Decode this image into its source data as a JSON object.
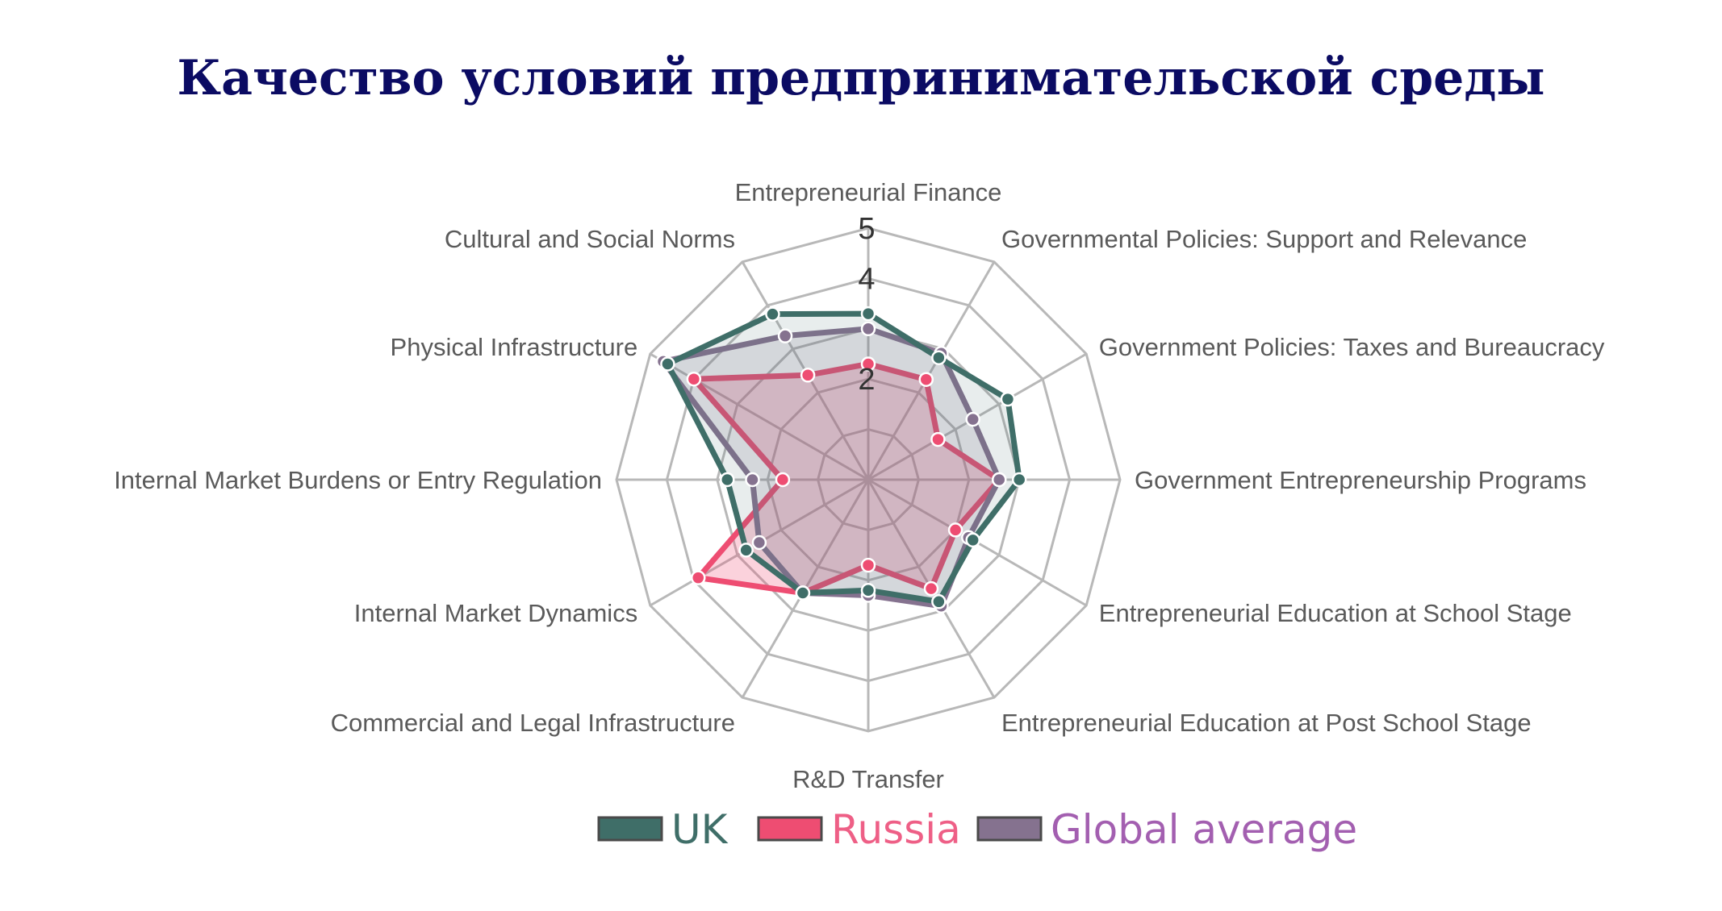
{
  "title": "Качество условий предпринимательской среды",
  "chart_data": {
    "type": "radar",
    "title": "Качество условий предпринимательской среды",
    "axes": [
      "Entrepreneurial Finance",
      "Governmental Policies: Support and Relevance",
      "Government Policies: Taxes and Bureaucracy",
      "Government Entrepreneurship Programs",
      "Entrepreneurial Education at School Stage",
      "Entrepreneurial Education at Post School Stage",
      "R&D Transfer",
      "Commercial and Legal Infrastructure",
      "Internal Market Dynamics",
      "Internal Market Burdens or Entry Regulation",
      "Physical Infrastructure",
      "Cultural and Social Norms"
    ],
    "rlim": [
      0,
      5
    ],
    "ticks": [
      {
        "value": 2,
        "label": "2"
      },
      {
        "value": 4,
        "label": "4"
      },
      {
        "value": 5,
        "label": "5"
      }
    ],
    "legend_position": "bottom",
    "series": [
      {
        "name": "UK",
        "color": "#3f6e68",
        "values": [
          3.3,
          2.8,
          3.2,
          3.0,
          2.4,
          2.8,
          2.2,
          2.6,
          2.8,
          2.8,
          4.6,
          3.8
        ]
      },
      {
        "name": "Russia",
        "color": "#ee4d72",
        "values": [
          2.3,
          2.3,
          1.6,
          2.6,
          2.0,
          2.5,
          1.7,
          2.6,
          3.9,
          1.7,
          4.0,
          2.4
        ]
      },
      {
        "name": "Global average",
        "color": "#85728f",
        "values": [
          3.0,
          2.9,
          2.4,
          2.6,
          2.3,
          2.9,
          2.3,
          2.6,
          2.5,
          2.3,
          4.7,
          3.3
        ]
      }
    ],
    "legend_text_colors": [
      "#3f6e68",
      "#ee5f86",
      "#a35fb0"
    ]
  }
}
